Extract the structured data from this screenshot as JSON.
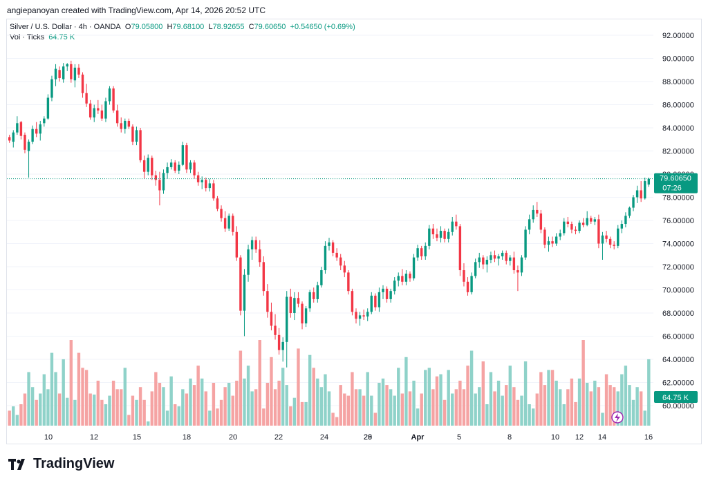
{
  "credit": "angiepanoyan created with TradingView.com, Apr 14, 2026 20:52 UTC",
  "brand": "TradingView",
  "legend": {
    "symbol": "Silver / U.S. Dollar · 4h · OANDA",
    "o_label": "O",
    "o": "79.05800",
    "h_label": "H",
    "h": "79.68100",
    "l_label": "L",
    "l": "78.92655",
    "c_label": "C",
    "c": "79.60650",
    "change": "+0.54650 (+0.69%)",
    "vol_label": "Vol · Ticks",
    "vol_value": "64.75 K"
  },
  "colors": {
    "up": "#089981",
    "down": "#f23645",
    "vol_up": "#8fd2c9",
    "vol_down": "#f5a3a3",
    "grid": "#f0f3fa",
    "axis_text": "#131722"
  },
  "price_tag": {
    "price": "79.60650",
    "countdown": "07:26"
  },
  "vol_tag": "64.75 K",
  "chart_data": {
    "type": "candlestick",
    "title": "Silver / U.S. Dollar · 4h · OANDA",
    "ylim": [
      58.5,
      93.5
    ],
    "y_ticks": [
      "60.00000",
      "62.00000",
      "64.00000",
      "66.00000",
      "68.00000",
      "70.00000",
      "72.00000",
      "74.00000",
      "76.00000",
      "78.00000",
      "80.00000",
      "82.00000",
      "84.00000",
      "86.00000",
      "88.00000",
      "90.00000",
      "92.00000"
    ],
    "x_ticks": [
      "10",
      "12",
      "15",
      "18",
      "20",
      "22",
      "24",
      "26",
      "29",
      "Apr",
      "5",
      "8",
      "10",
      "12",
      "14",
      "16"
    ],
    "last_price": 79.6065,
    "anchors": [
      [
        8.8,
        7
      ],
      [
        9.0,
        9
      ],
      [
        9.2,
        5
      ],
      [
        9.8,
        25
      ],
      [
        10.0,
        18
      ],
      [
        10.4,
        15
      ],
      [
        11.0,
        34
      ],
      [
        11.6,
        31
      ],
      [
        12.0,
        40
      ],
      [
        12.5,
        34
      ],
      [
        13.0,
        15
      ],
      [
        13.3,
        14.5
      ],
      [
        13.8,
        10
      ],
      [
        15.0,
        5
      ],
      [
        16.0,
        2
      ],
      [
        17.0,
        7
      ],
      [
        18.3,
        22
      ],
      [
        19.2,
        7
      ],
      [
        19.8,
        12
      ],
      [
        20.4,
        20
      ],
      [
        21.0,
        35
      ],
      [
        21.4,
        28
      ],
      [
        22.0,
        40
      ],
      [
        22.6,
        32
      ],
      [
        23.2,
        27
      ],
      [
        24.0,
        36
      ],
      [
        24.5,
        33
      ],
      [
        25.0,
        22
      ],
      [
        26.0,
        4
      ],
      [
        27.0,
        17
      ],
      [
        27.6,
        25
      ],
      [
        28.2,
        20
      ],
      [
        29.0,
        14
      ],
      [
        29.5,
        32
      ],
      [
        30.0,
        21
      ],
      [
        30.7,
        27
      ],
      [
        31.3,
        23
      ],
      [
        31.8,
        26
      ],
      [
        32.4,
        21
      ],
      [
        33.0,
        35
      ],
      [
        33.6,
        30
      ],
      [
        34.1,
        25
      ],
      [
        34.7,
        14
      ],
      [
        35.3,
        18
      ],
      [
        35.9,
        30
      ],
      [
        36.5,
        15
      ],
      [
        37.0,
        26
      ],
      [
        37.6,
        17
      ],
      [
        38.2,
        22
      ],
      [
        38.9,
        40
      ],
      [
        39.5,
        21
      ],
      [
        40.0,
        24
      ],
      [
        40.6,
        16
      ],
      [
        41.0,
        28
      ],
      [
        41.6,
        18
      ],
      [
        42.3,
        31
      ]
    ],
    "candles": [
      [
        83.2,
        83.4,
        82.7,
        82.9
      ],
      [
        82.8,
        83.8,
        82.3,
        83.6
      ],
      [
        83.6,
        85.0,
        83.4,
        84.4
      ],
      [
        84.5,
        84.6,
        83.0,
        83.3
      ],
      [
        83.4,
        83.6,
        81.8,
        82.1
      ],
      [
        82.0,
        83.0,
        79.7,
        82.8
      ],
      [
        82.8,
        84.2,
        82.6,
        83.9
      ],
      [
        83.9,
        84.5,
        83.2,
        83.5
      ],
      [
        83.5,
        84.6,
        82.9,
        84.3
      ],
      [
        84.4,
        85.0,
        84.1,
        84.8
      ],
      [
        84.8,
        86.9,
        84.7,
        86.6
      ],
      [
        86.6,
        88.5,
        86.3,
        88.2
      ],
      [
        88.2,
        89.5,
        87.6,
        89.1
      ],
      [
        89.0,
        89.3,
        88.0,
        88.3
      ],
      [
        88.2,
        89.6,
        87.9,
        89.3
      ],
      [
        89.3,
        89.6,
        88.9,
        89.5
      ],
      [
        89.5,
        89.8,
        87.9,
        88.2
      ],
      [
        88.1,
        89.5,
        87.5,
        89.2
      ],
      [
        89.2,
        89.5,
        88.3,
        88.6
      ],
      [
        88.6,
        88.8,
        86.6,
        87.0
      ],
      [
        87.0,
        87.8,
        85.8,
        86.1
      ],
      [
        86.1,
        86.4,
        84.7,
        84.9
      ],
      [
        84.9,
        86.0,
        84.5,
        85.7
      ],
      [
        85.7,
        86.4,
        85.2,
        85.5
      ],
      [
        85.5,
        86.0,
        84.6,
        84.8
      ],
      [
        84.8,
        86.6,
        84.5,
        86.3
      ],
      [
        86.3,
        87.6,
        86.0,
        87.4
      ],
      [
        87.4,
        87.6,
        85.3,
        85.5
      ],
      [
        85.5,
        86.0,
        84.1,
        84.4
      ],
      [
        84.4,
        84.9,
        83.6,
        83.9
      ],
      [
        83.9,
        84.8,
        83.5,
        84.6
      ],
      [
        84.6,
        84.8,
        83.9,
        84.1
      ],
      [
        84.1,
        84.3,
        82.5,
        82.8
      ],
      [
        82.8,
        84.1,
        82.5,
        83.8
      ],
      [
        83.8,
        84.0,
        81.0,
        81.2
      ],
      [
        81.2,
        81.6,
        79.6,
        80.2
      ],
      [
        80.2,
        81.7,
        79.9,
        81.4
      ],
      [
        81.4,
        81.6,
        79.5,
        79.9
      ],
      [
        79.9,
        80.3,
        79.0,
        79.5
      ],
      [
        79.5,
        80.2,
        77.3,
        78.6
      ],
      [
        78.6,
        80.4,
        78.3,
        80.1
      ],
      [
        80.1,
        81.0,
        79.6,
        80.6
      ],
      [
        80.6,
        81.3,
        80.4,
        81.0
      ],
      [
        81.0,
        81.2,
        80.1,
        80.3
      ],
      [
        80.3,
        81.1,
        80.0,
        80.8
      ],
      [
        80.8,
        82.8,
        80.7,
        82.5
      ],
      [
        82.5,
        82.7,
        80.1,
        80.4
      ],
      [
        80.4,
        81.2,
        80.1,
        81.0
      ],
      [
        81.0,
        81.2,
        79.6,
        79.9
      ],
      [
        79.9,
        80.2,
        79.0,
        79.3
      ],
      [
        79.3,
        79.8,
        78.7,
        79.5
      ],
      [
        79.5,
        79.7,
        78.5,
        78.8
      ],
      [
        78.8,
        79.6,
        78.5,
        79.2
      ],
      [
        79.2,
        79.5,
        77.7,
        77.9
      ],
      [
        77.9,
        78.1,
        76.8,
        77.0
      ],
      [
        77.0,
        77.3,
        75.9,
        76.2
      ],
      [
        76.2,
        76.8,
        75.0,
        75.3
      ],
      [
        75.3,
        76.6,
        75.1,
        76.4
      ],
      [
        76.4,
        76.6,
        74.7,
        75.0
      ],
      [
        75.0,
        75.5,
        72.5,
        72.8
      ],
      [
        72.8,
        73.0,
        67.8,
        68.2
      ],
      [
        68.2,
        71.8,
        66.0,
        71.3
      ],
      [
        71.3,
        73.9,
        70.7,
        73.5
      ],
      [
        73.5,
        74.6,
        72.6,
        74.3
      ],
      [
        74.3,
        74.6,
        73.2,
        73.5
      ],
      [
        73.5,
        74.3,
        72.0,
        72.4
      ],
      [
        72.4,
        72.9,
        69.5,
        69.9
      ],
      [
        69.9,
        70.5,
        67.6,
        68.1
      ],
      [
        68.1,
        68.9,
        66.5,
        66.9
      ],
      [
        66.9,
        67.9,
        65.7,
        66.1
      ],
      [
        66.1,
        66.7,
        64.4,
        64.8
      ],
      [
        64.8,
        65.9,
        63.8,
        65.5
      ],
      [
        65.5,
        69.9,
        63.3,
        69.4
      ],
      [
        69.4,
        70.1,
        67.6,
        68.0
      ],
      [
        68.0,
        69.8,
        67.4,
        69.3
      ],
      [
        69.3,
        69.8,
        68.5,
        68.8
      ],
      [
        68.8,
        69.0,
        66.6,
        67.1
      ],
      [
        67.1,
        68.6,
        66.8,
        68.4
      ],
      [
        68.4,
        70.0,
        68.1,
        69.8
      ],
      [
        69.8,
        70.2,
        68.9,
        69.2
      ],
      [
        69.2,
        70.7,
        68.9,
        70.4
      ],
      [
        70.4,
        72.0,
        70.2,
        71.7
      ],
      [
        71.7,
        74.2,
        71.4,
        73.8
      ],
      [
        73.8,
        74.5,
        73.4,
        74.1
      ],
      [
        74.1,
        74.3,
        72.9,
        73.2
      ],
      [
        73.2,
        73.6,
        72.5,
        72.8
      ],
      [
        72.8,
        73.1,
        71.7,
        72.1
      ],
      [
        72.1,
        72.5,
        71.1,
        71.5
      ],
      [
        71.5,
        71.7,
        69.6,
        69.9
      ],
      [
        69.9,
        70.1,
        67.8,
        68.1
      ],
      [
        68.1,
        68.4,
        67.1,
        67.5
      ],
      [
        67.5,
        68.1,
        66.9,
        67.8
      ],
      [
        67.8,
        68.3,
        67.4,
        67.7
      ],
      [
        67.7,
        68.4,
        67.3,
        68.1
      ],
      [
        68.1,
        69.8,
        67.9,
        69.5
      ],
      [
        69.5,
        69.7,
        68.2,
        68.5
      ],
      [
        68.5,
        70.2,
        68.1,
        69.8
      ],
      [
        69.8,
        70.4,
        69.2,
        70.1
      ],
      [
        70.1,
        70.3,
        68.9,
        69.2
      ],
      [
        69.2,
        70.1,
        68.9,
        69.9
      ],
      [
        69.9,
        71.1,
        69.6,
        70.8
      ],
      [
        70.8,
        71.5,
        70.3,
        71.2
      ],
      [
        71.2,
        71.8,
        70.4,
        70.7
      ],
      [
        70.7,
        71.7,
        70.4,
        71.4
      ],
      [
        71.4,
        71.6,
        70.7,
        71.0
      ],
      [
        71.0,
        73.1,
        70.8,
        72.8
      ],
      [
        72.8,
        73.9,
        72.5,
        73.6
      ],
      [
        73.6,
        73.8,
        72.6,
        72.9
      ],
      [
        72.9,
        74.1,
        72.6,
        73.8
      ],
      [
        73.8,
        75.6,
        73.5,
        75.3
      ],
      [
        75.3,
        75.7,
        74.4,
        74.8
      ],
      [
        74.8,
        75.3,
        74.2,
        74.5
      ],
      [
        74.5,
        75.5,
        74.1,
        75.1
      ],
      [
        75.1,
        75.3,
        74.1,
        74.4
      ],
      [
        74.4,
        75.3,
        74.1,
        75.0
      ],
      [
        75.0,
        76.3,
        74.7,
        75.9
      ],
      [
        75.9,
        76.5,
        75.2,
        75.5
      ],
      [
        75.5,
        75.7,
        71.2,
        71.7
      ],
      [
        71.7,
        72.3,
        70.3,
        70.7
      ],
      [
        70.7,
        71.1,
        69.5,
        69.8
      ],
      [
        69.8,
        71.5,
        69.6,
        71.2
      ],
      [
        71.2,
        72.7,
        71.0,
        72.4
      ],
      [
        72.4,
        73.2,
        71.9,
        72.8
      ],
      [
        72.8,
        73.0,
        71.8,
        72.2
      ],
      [
        72.2,
        72.9,
        71.5,
        72.6
      ],
      [
        72.6,
        73.3,
        72.3,
        73.0
      ],
      [
        73.0,
        73.4,
        72.4,
        72.7
      ],
      [
        72.7,
        73.1,
        72.1,
        72.9
      ],
      [
        72.9,
        73.4,
        72.6,
        73.2
      ],
      [
        73.2,
        73.4,
        72.2,
        72.5
      ],
      [
        72.5,
        73.0,
        72.1,
        72.8
      ],
      [
        72.8,
        73.3,
        71.4,
        71.7
      ],
      [
        71.7,
        72.1,
        69.9,
        71.5
      ],
      [
        71.5,
        73.0,
        71.2,
        72.8
      ],
      [
        72.8,
        75.5,
        72.6,
        75.2
      ],
      [
        75.2,
        76.5,
        74.8,
        76.1
      ],
      [
        76.1,
        77.3,
        75.8,
        76.9
      ],
      [
        76.9,
        77.6,
        76.3,
        76.6
      ],
      [
        76.6,
        76.9,
        74.9,
        75.2
      ],
      [
        75.2,
        75.4,
        73.6,
        73.9
      ],
      [
        73.9,
        74.6,
        73.3,
        74.2
      ],
      [
        74.2,
        74.6,
        73.7,
        74.0
      ],
      [
        74.0,
        74.9,
        73.8,
        74.6
      ],
      [
        74.6,
        75.2,
        74.3,
        74.9
      ],
      [
        74.9,
        76.2,
        74.7,
        75.9
      ],
      [
        75.9,
        76.3,
        75.4,
        75.7
      ],
      [
        75.7,
        75.9,
        74.9,
        75.2
      ],
      [
        75.2,
        75.5,
        74.8,
        75.1
      ],
      [
        75.1,
        76.0,
        74.9,
        75.8
      ],
      [
        75.8,
        76.2,
        75.4,
        75.6
      ],
      [
        75.6,
        76.8,
        75.5,
        76.2
      ],
      [
        76.2,
        76.4,
        75.7,
        75.9
      ],
      [
        75.9,
        76.3,
        75.6,
        76.1
      ],
      [
        76.1,
        76.5,
        73.6,
        74.0
      ],
      [
        74.0,
        75.0,
        72.6,
        74.7
      ],
      [
        74.7,
        75.1,
        74.1,
        74.4
      ],
      [
        74.4,
        74.6,
        73.6,
        73.9
      ],
      [
        73.9,
        74.2,
        73.5,
        73.8
      ],
      [
        73.8,
        75.6,
        73.6,
        75.3
      ],
      [
        75.3,
        76.0,
        74.9,
        75.7
      ],
      [
        75.7,
        76.7,
        75.4,
        76.4
      ],
      [
        76.4,
        77.2,
        76.2,
        77.1
      ],
      [
        77.1,
        78.2,
        76.8,
        78.0
      ],
      [
        78.0,
        79.0,
        77.5,
        78.6
      ],
      [
        78.6,
        79.4,
        77.6,
        77.9
      ],
      [
        77.9,
        79.7,
        77.8,
        79.4
      ],
      [
        79.1,
        79.7,
        78.9,
        79.6
      ]
    ],
    "volume_ylim": [
      0,
      100
    ]
  }
}
